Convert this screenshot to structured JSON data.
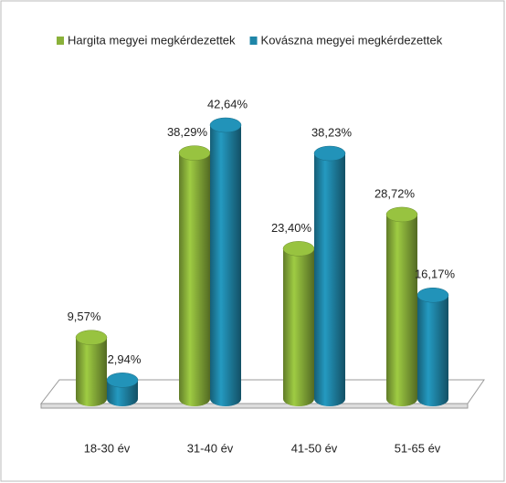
{
  "chart_data": {
    "type": "bar",
    "categories": [
      "18-30 év",
      "31-40 év",
      "41-50 év",
      "51-65 év"
    ],
    "series": [
      {
        "name": "Hargita megyei megkérdezettek",
        "color": "#8ab13a",
        "values": [
          9.57,
          38.29,
          23.4,
          28.72
        ],
        "value_labels": [
          "9,57%",
          "38,29%",
          "23,40%",
          "28,72%"
        ]
      },
      {
        "name": "Kovászna megyei megkérdezettek",
        "color": "#1f86a8",
        "values": [
          2.94,
          42.64,
          38.23,
          16.17
        ],
        "value_labels": [
          "2,94%",
          "42,64%",
          "38,23%",
          "16,17%"
        ]
      }
    ]
  }
}
